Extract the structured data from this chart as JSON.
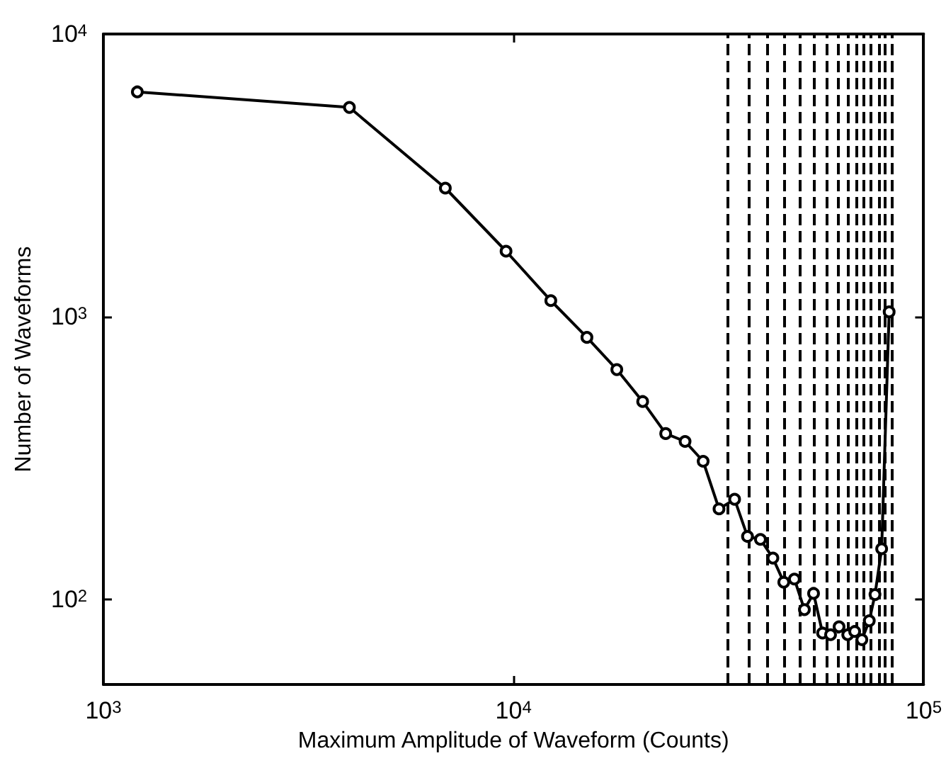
{
  "chart_data": {
    "type": "line",
    "xlabel": "Maximum Amplitude of Waveform (Counts)",
    "ylabel": "Number of Waveforms",
    "log": "xy",
    "grid": false,
    "marker": "circle",
    "line_style": "solid",
    "xlim": [
      1000,
      100000
    ],
    "ylim": [
      50,
      10000
    ],
    "xticks": [
      {
        "value": 1000,
        "label": "10$^{3}$"
      },
      {
        "value": 10000,
        "label": "10$^{4}$"
      },
      {
        "value": 100000,
        "label": "10$^{5}$"
      }
    ],
    "yticks": [
      {
        "value": 100,
        "label": "10$^{2}$"
      },
      {
        "value": 1000,
        "label": "10$^{3}$"
      },
      {
        "value": 10000,
        "label": "10$^{4}$"
      }
    ],
    "series": [
      {
        "color": "#000000",
        "x": [
          1210,
          3980,
          6820,
          9590,
          12330,
          15100,
          17860,
          20650,
          23500,
          26200,
          29000,
          31700,
          34600,
          37200,
          40000,
          42900,
          45600,
          48400,
          51200,
          53900,
          56700,
          59300,
          62200,
          65300,
          67900,
          70700,
          73700,
          76100,
          79000,
          82400
        ],
        "values": [
          6240,
          5500,
          2850,
          1705,
          1140,
          845,
          650,
          501,
          386,
          362,
          308,
          209,
          226,
          167,
          163,
          140,
          115,
          118,
          92,
          105,
          76,
          75,
          80,
          75,
          77,
          72,
          84,
          104,
          151,
          1040
        ]
      }
    ],
    "ref_lines": [
      {
        "axis": "x",
        "value": 33300,
        "line_style": "dashed",
        "color": "#000000"
      },
      {
        "axis": "x",
        "value": 37400,
        "line_style": "dashed",
        "color": "#000000"
      },
      {
        "axis": "x",
        "value": 41700,
        "line_style": "dashed",
        "color": "#000000"
      },
      {
        "axis": "x",
        "value": 45600,
        "line_style": "dashed",
        "color": "#000000"
      },
      {
        "axis": "x",
        "value": 50000,
        "line_style": "dashed",
        "color": "#000000"
      },
      {
        "axis": "x",
        "value": 54000,
        "line_style": "dashed",
        "color": "#000000"
      },
      {
        "axis": "x",
        "value": 58000,
        "line_style": "dashed",
        "color": "#000000"
      },
      {
        "axis": "x",
        "value": 61800,
        "line_style": "dashed",
        "color": "#000000"
      },
      {
        "axis": "x",
        "value": 65200,
        "line_style": "dashed",
        "color": "#000000"
      },
      {
        "axis": "x",
        "value": 68300,
        "line_style": "dashed",
        "color": "#000000"
      },
      {
        "axis": "x",
        "value": 71400,
        "line_style": "dashed",
        "color": "#000000"
      },
      {
        "axis": "x",
        "value": 74500,
        "line_style": "dashed",
        "color": "#000000"
      },
      {
        "axis": "x",
        "value": 77600,
        "line_style": "dashed",
        "color": "#000000"
      },
      {
        "axis": "x",
        "value": 80500,
        "line_style": "dashed",
        "color": "#000000"
      },
      {
        "axis": "x",
        "value": 83500,
        "line_style": "dashed",
        "color": "#000000"
      }
    ]
  }
}
